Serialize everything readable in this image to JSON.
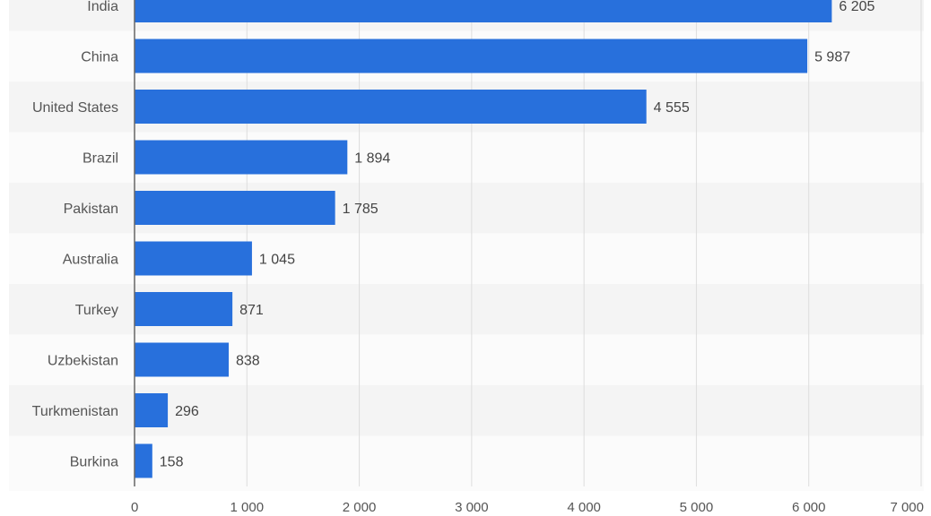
{
  "chart_data": {
    "type": "bar",
    "orientation": "horizontal",
    "categories": [
      "India",
      "China",
      "United States",
      "Brazil",
      "Pakistan",
      "Australia",
      "Turkey",
      "Uzbekistan",
      "Turkmenistan",
      "Burkina"
    ],
    "values": [
      6205,
      5987,
      4555,
      1894,
      1785,
      1045,
      871,
      838,
      296,
      158
    ],
    "value_labels": [
      "6 205",
      "5 987",
      "4 555",
      "1 894",
      "1 785",
      "1 045",
      "871",
      "838",
      "296",
      "158"
    ],
    "x_ticks": [
      0,
      1000,
      2000,
      3000,
      4000,
      5000,
      6000,
      7000
    ],
    "x_tick_labels": [
      "0",
      "1 000",
      "2 000",
      "3 000",
      "4 000",
      "5 000",
      "6 000",
      "7 000"
    ],
    "xlim": [
      0,
      7000
    ],
    "title": "",
    "xlabel": "",
    "ylabel": "",
    "grid": "vertical",
    "legend": "none",
    "colors": {
      "bar": "#2870dc",
      "band_light": "#fbfbfb",
      "band_dark": "#f4f4f4",
      "grid": "#dddddd",
      "axis": "#666666"
    }
  }
}
